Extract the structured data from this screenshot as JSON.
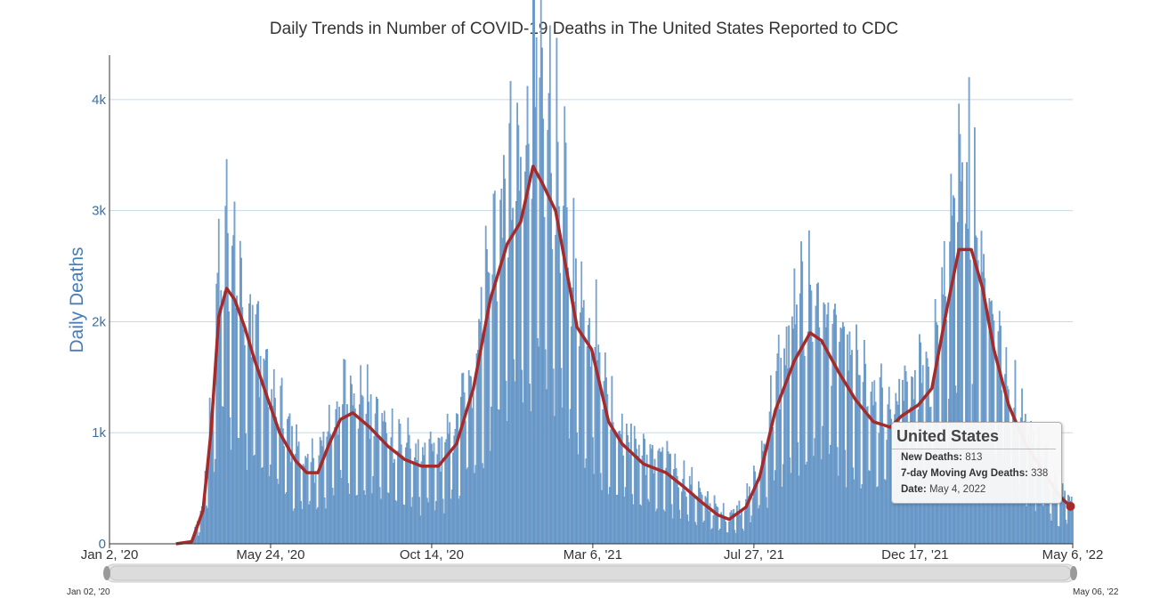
{
  "chart_data": {
    "type": "bar",
    "title": "Daily Trends in Number of COVID-19 Deaths in The United States Reported to CDC",
    "ylabel": "Daily Deaths",
    "xlabel": "",
    "x_range": [
      "2020-01-02",
      "2022-05-06"
    ],
    "ylim": [
      0,
      4200
    ],
    "yticks": [
      {
        "value": 0,
        "label": "0"
      },
      {
        "value": 1000,
        "label": "1k"
      },
      {
        "value": 2000,
        "label": "2k"
      },
      {
        "value": 3000,
        "label": "3k"
      },
      {
        "value": 4000,
        "label": "4k"
      }
    ],
    "xticks": [
      {
        "date": "2020-01-02",
        "label": "Jan 2, '20"
      },
      {
        "date": "2020-05-24",
        "label": "May 24, '20"
      },
      {
        "date": "2020-10-14",
        "label": "Oct 14, '20"
      },
      {
        "date": "2021-03-06",
        "label": "Mar 6, '21"
      },
      {
        "date": "2021-07-27",
        "label": "Jul 27, '21"
      },
      {
        "date": "2021-12-17",
        "label": "Dec 17, '21"
      },
      {
        "date": "2022-05-06",
        "label": "May 6, '22"
      }
    ],
    "grid": true,
    "series": [
      {
        "name": "New Deaths",
        "kind": "bar",
        "color": "#7fa8d1",
        "edge_color": "#4f86bd",
        "daily_peak_spike": {
          "date": "2022-02-03",
          "value": 4200
        },
        "points": [
          [
            "2020-03-01",
            0
          ],
          [
            "2020-03-15",
            20
          ],
          [
            "2020-03-25",
            300
          ],
          [
            "2020-04-01",
            1000
          ],
          [
            "2020-04-08",
            2050
          ],
          [
            "2020-04-15",
            2350
          ],
          [
            "2020-04-22",
            2200
          ],
          [
            "2020-05-01",
            1950
          ],
          [
            "2020-05-10",
            1650
          ],
          [
            "2020-05-20",
            1350
          ],
          [
            "2020-06-01",
            1000
          ],
          [
            "2020-06-15",
            750
          ],
          [
            "2020-06-25",
            640
          ],
          [
            "2020-07-05",
            640
          ],
          [
            "2020-07-15",
            900
          ],
          [
            "2020-07-25",
            1120
          ],
          [
            "2020-08-05",
            1180
          ],
          [
            "2020-08-20",
            1050
          ],
          [
            "2020-09-05",
            880
          ],
          [
            "2020-09-20",
            760
          ],
          [
            "2020-10-05",
            700
          ],
          [
            "2020-10-20",
            700
          ],
          [
            "2020-11-05",
            900
          ],
          [
            "2020-11-20",
            1400
          ],
          [
            "2020-12-05",
            2200
          ],
          [
            "2020-12-20",
            2700
          ],
          [
            "2021-01-01",
            2900
          ],
          [
            "2021-01-12",
            3500
          ],
          [
            "2021-01-20",
            3250
          ],
          [
            "2021-02-01",
            3000
          ],
          [
            "2021-02-10",
            2500
          ],
          [
            "2021-02-20",
            1950
          ],
          [
            "2021-03-05",
            1750
          ],
          [
            "2021-03-20",
            1100
          ],
          [
            "2021-04-01",
            900
          ],
          [
            "2021-04-20",
            720
          ],
          [
            "2021-05-10",
            640
          ],
          [
            "2021-05-25",
            520
          ],
          [
            "2021-06-10",
            380
          ],
          [
            "2021-06-25",
            260
          ],
          [
            "2021-07-05",
            220
          ],
          [
            "2021-07-20",
            330
          ],
          [
            "2021-08-01",
            600
          ],
          [
            "2021-08-15",
            1200
          ],
          [
            "2021-09-01",
            1650
          ],
          [
            "2021-09-15",
            1900
          ],
          [
            "2021-09-25",
            1830
          ],
          [
            "2021-10-10",
            1550
          ],
          [
            "2021-10-25",
            1300
          ],
          [
            "2021-11-10",
            1100
          ],
          [
            "2021-11-25",
            1050
          ],
          [
            "2021-12-05",
            1150
          ],
          [
            "2021-12-20",
            1250
          ],
          [
            "2022-01-01",
            1400
          ],
          [
            "2022-01-15",
            2150
          ],
          [
            "2022-01-25",
            2650
          ],
          [
            "2022-02-05",
            2650
          ],
          [
            "2022-02-15",
            2300
          ],
          [
            "2022-02-25",
            1750
          ],
          [
            "2022-03-10",
            1250
          ],
          [
            "2022-03-25",
            900
          ],
          [
            "2022-04-10",
            650
          ],
          [
            "2022-04-25",
            420
          ],
          [
            "2022-05-06",
            340
          ]
        ]
      },
      {
        "name": "7-day Moving Avg Deaths",
        "kind": "line",
        "color": "#a52a2a",
        "points": [
          [
            "2020-03-01",
            0
          ],
          [
            "2020-03-15",
            20
          ],
          [
            "2020-03-25",
            300
          ],
          [
            "2020-04-01",
            1000
          ],
          [
            "2020-04-08",
            2050
          ],
          [
            "2020-04-15",
            2300
          ],
          [
            "2020-04-22",
            2200
          ],
          [
            "2020-05-01",
            1950
          ],
          [
            "2020-05-10",
            1650
          ],
          [
            "2020-05-20",
            1350
          ],
          [
            "2020-06-01",
            1000
          ],
          [
            "2020-06-15",
            750
          ],
          [
            "2020-06-25",
            640
          ],
          [
            "2020-07-05",
            640
          ],
          [
            "2020-07-15",
            900
          ],
          [
            "2020-07-25",
            1120
          ],
          [
            "2020-08-05",
            1180
          ],
          [
            "2020-08-20",
            1050
          ],
          [
            "2020-09-05",
            880
          ],
          [
            "2020-09-20",
            760
          ],
          [
            "2020-10-05",
            700
          ],
          [
            "2020-10-20",
            700
          ],
          [
            "2020-11-05",
            900
          ],
          [
            "2020-11-20",
            1400
          ],
          [
            "2020-12-05",
            2200
          ],
          [
            "2020-12-20",
            2700
          ],
          [
            "2021-01-01",
            2900
          ],
          [
            "2021-01-12",
            3400
          ],
          [
            "2021-01-20",
            3250
          ],
          [
            "2021-02-01",
            3000
          ],
          [
            "2021-02-10",
            2500
          ],
          [
            "2021-02-20",
            1950
          ],
          [
            "2021-03-05",
            1750
          ],
          [
            "2021-03-20",
            1100
          ],
          [
            "2021-04-01",
            900
          ],
          [
            "2021-04-20",
            720
          ],
          [
            "2021-05-10",
            640
          ],
          [
            "2021-05-25",
            520
          ],
          [
            "2021-06-10",
            380
          ],
          [
            "2021-06-25",
            260
          ],
          [
            "2021-07-05",
            220
          ],
          [
            "2021-07-20",
            330
          ],
          [
            "2021-08-01",
            600
          ],
          [
            "2021-08-15",
            1200
          ],
          [
            "2021-09-01",
            1650
          ],
          [
            "2021-09-15",
            1900
          ],
          [
            "2021-09-25",
            1830
          ],
          [
            "2021-10-10",
            1550
          ],
          [
            "2021-10-25",
            1300
          ],
          [
            "2021-11-10",
            1100
          ],
          [
            "2021-11-25",
            1050
          ],
          [
            "2021-12-05",
            1150
          ],
          [
            "2021-12-20",
            1250
          ],
          [
            "2022-01-01",
            1400
          ],
          [
            "2022-01-15",
            2150
          ],
          [
            "2022-01-25",
            2650
          ],
          [
            "2022-02-05",
            2650
          ],
          [
            "2022-02-15",
            2300
          ],
          [
            "2022-02-25",
            1750
          ],
          [
            "2022-03-10",
            1250
          ],
          [
            "2022-03-25",
            900
          ],
          [
            "2022-04-10",
            650
          ],
          [
            "2022-04-25",
            420
          ],
          [
            "2022-05-04",
            338
          ]
        ]
      }
    ],
    "highlight_point": {
      "date": "2022-05-04",
      "value": 338
    }
  },
  "tooltip": {
    "title": "United States",
    "rows": [
      {
        "key": "New Deaths:",
        "value": "813"
      },
      {
        "key": "7-day Moving Avg Deaths:",
        "value": "338"
      },
      {
        "key": "Date:",
        "value": "May 4, 2022"
      }
    ]
  },
  "navigator": {
    "start_label": "Jan 02, '20",
    "end_label": "May 06, '22"
  }
}
